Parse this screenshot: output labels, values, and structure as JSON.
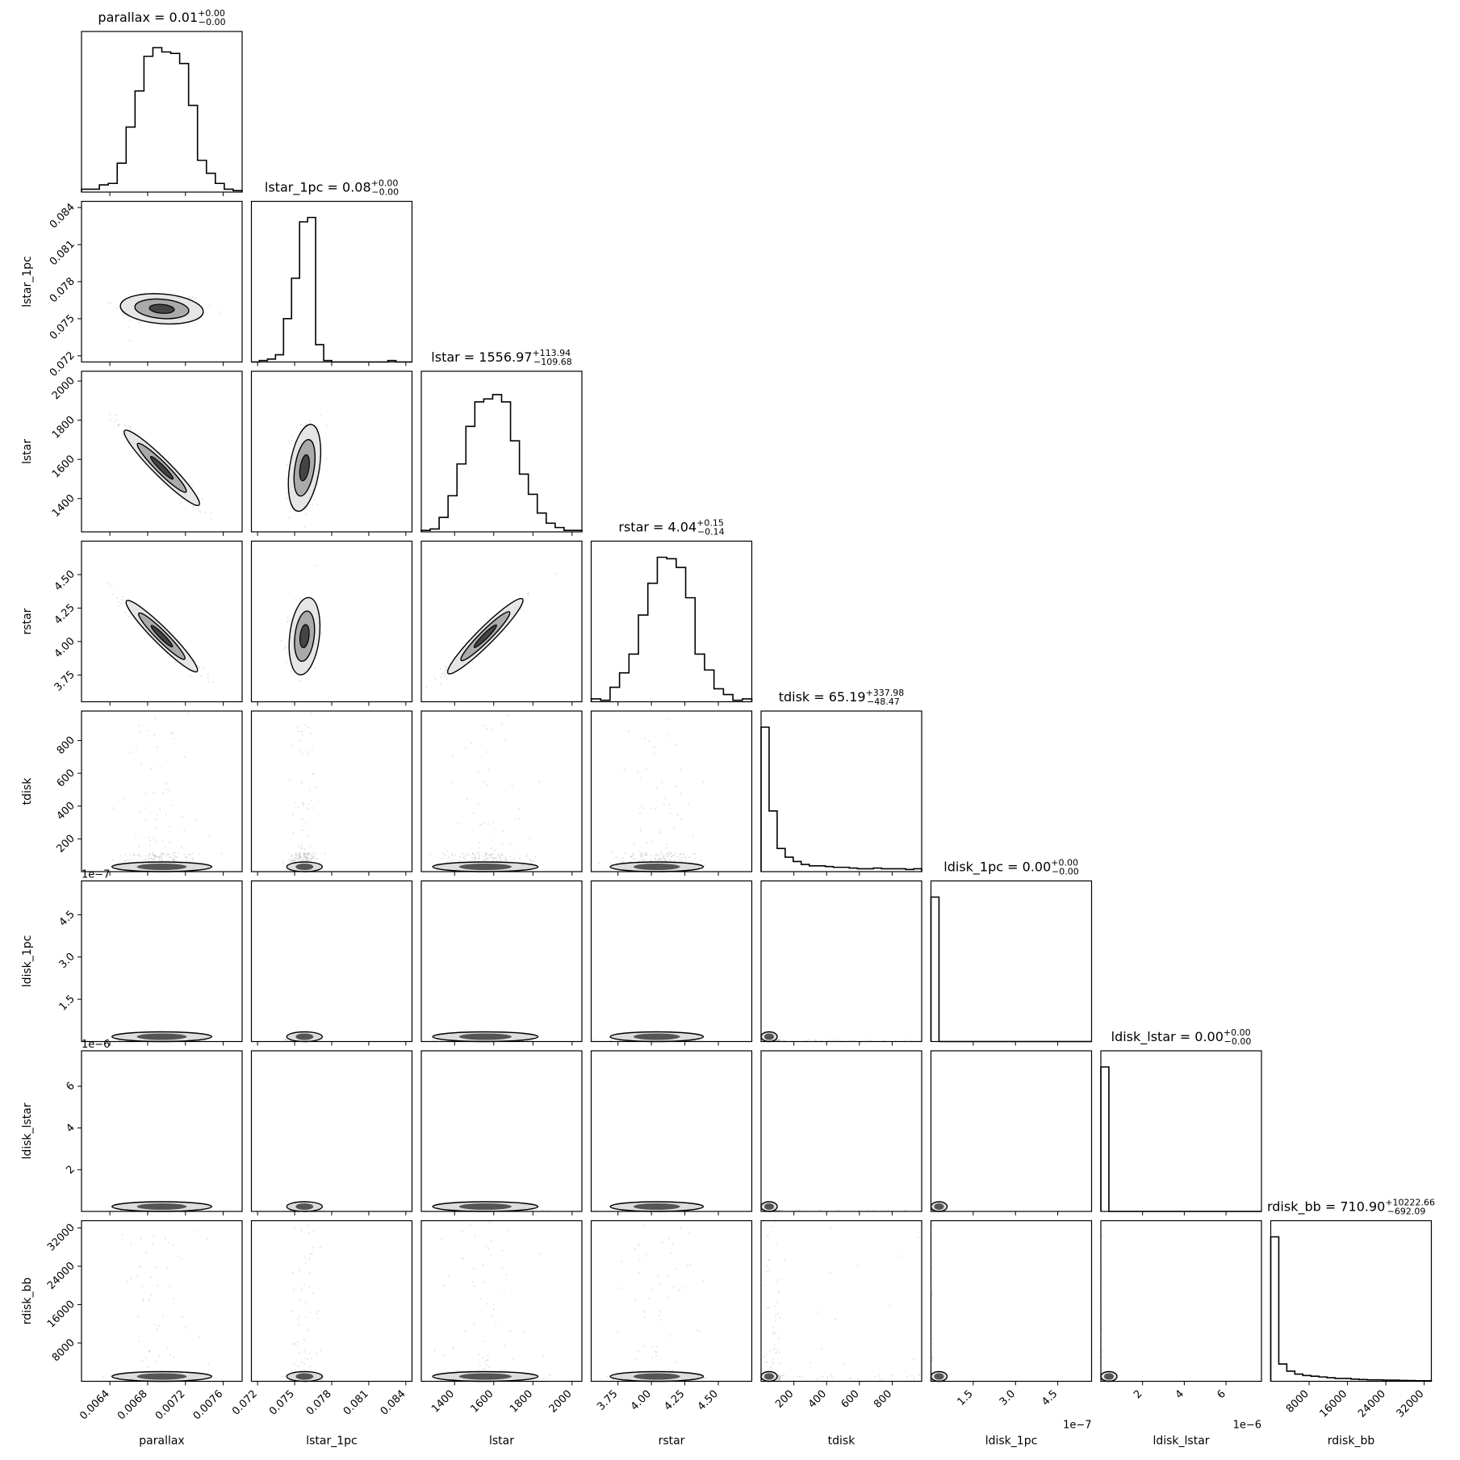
{
  "chart_data": {
    "type": "corner",
    "description_type": "histogram-and-2d-contour matrix",
    "params": [
      {
        "name": "parallax",
        "range": [
          0.0061,
          0.0078
        ],
        "ticks": [
          0.0064,
          0.0068,
          0.0072,
          0.0076
        ],
        "tick_labels": [
          "0.0064",
          "0.0068",
          "0.0072",
          "0.0076"
        ],
        "offset": "",
        "median": 0.00695,
        "sigma": 0.00022,
        "shape": "normal",
        "title": {
          "prefix": "parallax = 0.01",
          "upper": "+0.00",
          "lower": "−0.00"
        }
      },
      {
        "name": "lstar_1pc",
        "range": [
          0.0715,
          0.0845
        ],
        "ticks": [
          0.072,
          0.075,
          0.078,
          0.081,
          0.084
        ],
        "tick_labels": [
          "0.072",
          "0.075",
          "0.078",
          "0.081",
          "0.084"
        ],
        "offset": "",
        "median": 0.0758,
        "sigma": 0.0006,
        "shape": "normal",
        "title": {
          "prefix": "lstar_1pc = 0.08",
          "upper": "+0.00",
          "lower": "−0.00"
        }
      },
      {
        "name": "lstar",
        "range": [
          1230,
          2050
        ],
        "ticks": [
          1400,
          1600,
          1800,
          2000
        ],
        "tick_labels": [
          "1400",
          "1600",
          "1800",
          "2000"
        ],
        "offset": "",
        "median": 1556.97,
        "sigma": 112,
        "shape": "normal",
        "title": {
          "prefix": "lstar = 1556.97",
          "upper": "+113.94",
          "lower": "−109.68"
        }
      },
      {
        "name": "rstar",
        "range": [
          3.55,
          4.75
        ],
        "ticks": [
          3.75,
          4.0,
          4.25,
          4.5
        ],
        "tick_labels": [
          "3.75",
          "4.00",
          "4.25",
          "4.50"
        ],
        "offset": "",
        "median": 4.04,
        "sigma": 0.145,
        "shape": "normal",
        "title": {
          "prefix": "rstar = 4.04",
          "upper": "+0.15",
          "lower": "−0.14"
        }
      },
      {
        "name": "tdisk",
        "range": [
          0,
          980
        ],
        "ticks": [
          200,
          400,
          600,
          800
        ],
        "tick_labels": [
          "200",
          "400",
          "600",
          "800"
        ],
        "offset": "",
        "median": 65.19,
        "sigma": 120,
        "shape": "skewed",
        "title": {
          "prefix": "tdisk = 65.19",
          "upper": "+337.98",
          "lower": "−48.47"
        }
      },
      {
        "name": "ldisk_1pc",
        "range": [
          0,
          5.7e-07
        ],
        "ticks": [
          1.5e-07,
          3e-07,
          4.5e-07
        ],
        "tick_labels": [
          "1.5",
          "3.0",
          "4.5"
        ],
        "offset": "1e−7",
        "median": 1e-09,
        "sigma": 5e-09,
        "shape": "spike",
        "title": {
          "prefix": "ldisk_1pc = 0.00",
          "upper": "+0.00",
          "lower": "−0.00"
        }
      },
      {
        "name": "ldisk_lstar",
        "range": [
          0,
          7.7e-06
        ],
        "ticks": [
          2e-06,
          4e-06,
          6e-06
        ],
        "tick_labels": [
          "2",
          "4",
          "6"
        ],
        "offset": "1e−6",
        "median": 1e-08,
        "sigma": 5e-08,
        "shape": "spike",
        "title": {
          "prefix": "ldisk_lstar = 0.00",
          "upper": "+0.00",
          "lower": "−0.00"
        }
      },
      {
        "name": "rdisk_bb",
        "range": [
          0,
          33500
        ],
        "ticks": [
          8000,
          16000,
          24000,
          32000
        ],
        "tick_labels": [
          "8000",
          "16000",
          "24000",
          "32000"
        ],
        "offset": "",
        "median": 710.9,
        "sigma": 3000,
        "shape": "skewed",
        "title": {
          "prefix": "rdisk_bb = 710.90",
          "upper": "+10222.66",
          "lower": "−692.09"
        }
      }
    ],
    "correlations": {
      "1-0": 0.1,
      "2-0": -0.97,
      "2-1": 0.2,
      "3-0": -0.97,
      "3-1": 0.15,
      "3-2": 0.98
    },
    "histograms": {
      "parallax": [
        0.02,
        0.02,
        0.05,
        0.06,
        0.2,
        0.45,
        0.7,
        0.94,
        1.0,
        0.97,
        0.96,
        0.89,
        0.6,
        0.22,
        0.13,
        0.06,
        0.02,
        0.01
      ],
      "lstar_1pc": [
        0.0,
        0.01,
        0.02,
        0.05,
        0.3,
        0.58,
        0.97,
        1.0,
        0.12,
        0.01,
        0.0,
        0.0,
        0.0,
        0.0,
        0.0,
        0.0,
        0.0,
        0.01,
        0.0,
        0.0
      ],
      "lstar": [
        0.01,
        0.02,
        0.1,
        0.25,
        0.47,
        0.73,
        0.9,
        0.92,
        0.95,
        0.9,
        0.63,
        0.4,
        0.26,
        0.13,
        0.06,
        0.03,
        0.01,
        0.01
      ],
      "rstar": [
        0.02,
        0.01,
        0.1,
        0.2,
        0.33,
        0.6,
        0.82,
        1.0,
        0.99,
        0.93,
        0.72,
        0.33,
        0.22,
        0.09,
        0.05,
        0.01,
        0.02
      ],
      "tdisk": [
        1.0,
        0.42,
        0.16,
        0.1,
        0.07,
        0.05,
        0.04,
        0.04,
        0.035,
        0.03,
        0.03,
        0.025,
        0.02,
        0.02,
        0.025,
        0.02,
        0.02,
        0.02,
        0.015,
        0.02
      ],
      "ldisk_1pc": [
        1.0,
        0,
        0,
        0,
        0,
        0,
        0,
        0,
        0,
        0,
        0,
        0,
        0,
        0,
        0,
        0,
        0,
        0,
        0,
        0
      ],
      "ldisk_lstar": [
        1.0,
        0,
        0,
        0,
        0,
        0,
        0,
        0,
        0,
        0,
        0,
        0,
        0,
        0,
        0,
        0,
        0,
        0,
        0,
        0
      ],
      "rdisk_bb": [
        1.0,
        0.12,
        0.07,
        0.05,
        0.04,
        0.035,
        0.03,
        0.025,
        0.02,
        0.02,
        0.015,
        0.012,
        0.01,
        0.01,
        0.008,
        0.008,
        0.006,
        0.005,
        0.004,
        0.004
      ]
    },
    "grid": false,
    "legend": "none"
  }
}
